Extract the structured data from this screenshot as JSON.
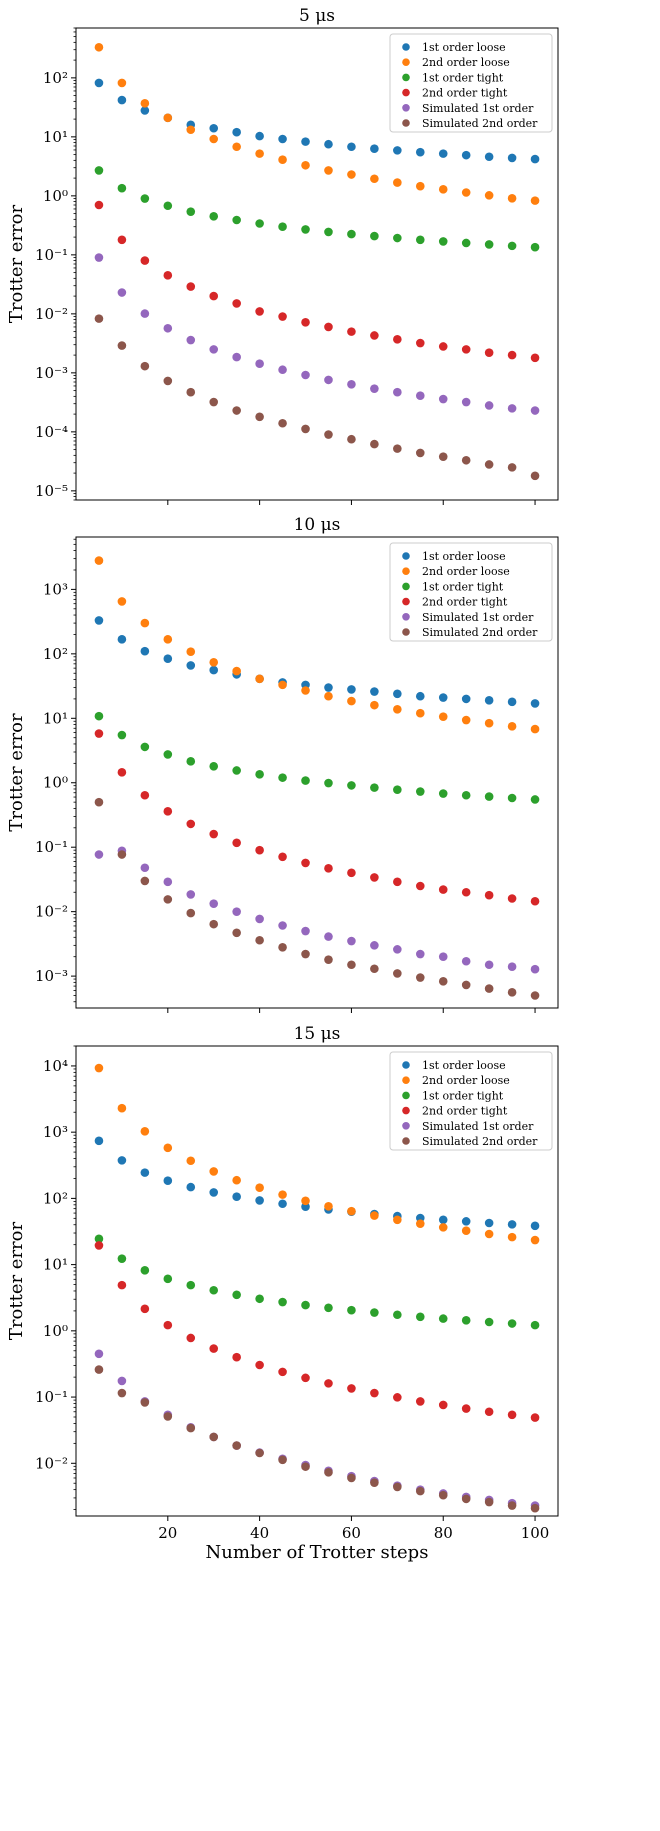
{
  "chart_data": [
    {
      "type": "scatter",
      "title": "5 μs",
      "ylabel": "Trotter error",
      "xlabel": "",
      "yscale": "log",
      "xlim": [
        0,
        105
      ],
      "ylim": [
        7e-06,
        700
      ],
      "yticks": [
        1e-05,
        0.0001,
        0.001,
        0.01,
        0.1,
        1,
        10,
        100
      ],
      "xticks": [
        20,
        40,
        60,
        80,
        100
      ],
      "x": [
        5,
        10,
        15,
        20,
        25,
        30,
        35,
        40,
        45,
        50,
        55,
        60,
        65,
        70,
        75,
        80,
        85,
        90,
        95,
        100
      ],
      "legend_position": "upper right",
      "series": [
        {
          "name": "1st order loose",
          "color": "#1f77b4",
          "values": [
            82,
            42,
            28,
            21,
            16,
            14,
            12,
            10.3,
            9.2,
            8.3,
            7.5,
            6.8,
            6.3,
            5.9,
            5.5,
            5.2,
            4.9,
            4.6,
            4.4,
            4.2
          ]
        },
        {
          "name": "2nd order loose",
          "color": "#ff7f0e",
          "values": [
            330,
            82,
            37,
            21,
            13.2,
            9.2,
            6.8,
            5.2,
            4.1,
            3.3,
            2.7,
            2.3,
            1.95,
            1.68,
            1.46,
            1.29,
            1.14,
            1.02,
            0.91,
            0.83
          ]
        },
        {
          "name": "1st order tight",
          "color": "#2ca02c",
          "values": [
            2.7,
            1.35,
            0.9,
            0.68,
            0.54,
            0.45,
            0.39,
            0.34,
            0.3,
            0.27,
            0.245,
            0.225,
            0.208,
            0.193,
            0.18,
            0.169,
            0.159,
            0.15,
            0.142,
            0.135
          ]
        },
        {
          "name": "2nd order tight",
          "color": "#d62728",
          "values": [
            0.7,
            0.18,
            0.08,
            0.045,
            0.029,
            0.02,
            0.015,
            0.011,
            0.009,
            0.0072,
            0.006,
            0.005,
            0.0043,
            0.0037,
            0.0032,
            0.0028,
            0.0025,
            0.0022,
            0.002,
            0.0018
          ]
        },
        {
          "name": "Simulated 1st order",
          "color": "#9467bd",
          "values": [
            0.09,
            0.023,
            0.0101,
            0.0057,
            0.0036,
            0.0025,
            0.00185,
            0.00143,
            0.00113,
            0.00092,
            0.00076,
            0.00064,
            0.00054,
            0.00047,
            0.00041,
            0.00036,
            0.00032,
            0.00028,
            0.00025,
            0.00023
          ]
        },
        {
          "name": "Simulated 2nd order",
          "color": "#8c564b",
          "values": [
            0.0083,
            0.0029,
            0.0013,
            0.00073,
            0.00047,
            0.00032,
            0.00023,
            0.00018,
            0.00014,
            0.000112,
            9e-05,
            7.5e-05,
            6.2e-05,
            5.2e-05,
            4.4e-05,
            3.8e-05,
            3.3e-05,
            2.8e-05,
            2.5e-05,
            1.8e-05
          ]
        }
      ]
    },
    {
      "type": "scatter",
      "title": "10 μs",
      "ylabel": "Trotter error",
      "xlabel": "",
      "yscale": "log",
      "xlim": [
        0,
        105
      ],
      "ylim": [
        0.00032,
        6500
      ],
      "yticks": [
        0.001,
        0.01,
        0.1,
        1,
        10,
        100,
        1000
      ],
      "xticks": [
        20,
        40,
        60,
        80,
        100
      ],
      "x": [
        5,
        10,
        15,
        20,
        25,
        30,
        35,
        40,
        45,
        50,
        55,
        60,
        65,
        70,
        75,
        80,
        85,
        90,
        95,
        100
      ],
      "legend_position": "upper right",
      "series": [
        {
          "name": "1st order loose",
          "color": "#1f77b4",
          "values": [
            330,
            168,
            110,
            84,
            66,
            56,
            48,
            41,
            36,
            33,
            30,
            28,
            26,
            24,
            22,
            21,
            20,
            19,
            18,
            17
          ]
        },
        {
          "name": "2nd order loose",
          "color": "#ff7f0e",
          "values": [
            2800,
            650,
            300,
            168,
            108,
            74,
            54,
            41,
            33,
            27,
            22,
            18.5,
            16,
            13.8,
            12,
            10.6,
            9.4,
            8.4,
            7.5,
            6.8
          ]
        },
        {
          "name": "1st order tight",
          "color": "#2ca02c",
          "values": [
            10.8,
            5.5,
            3.6,
            2.75,
            2.15,
            1.8,
            1.55,
            1.35,
            1.2,
            1.08,
            0.99,
            0.91,
            0.84,
            0.78,
            0.73,
            0.68,
            0.64,
            0.61,
            0.58,
            0.55
          ]
        },
        {
          "name": "2nd order tight",
          "color": "#d62728",
          "values": [
            5.8,
            1.45,
            0.64,
            0.36,
            0.23,
            0.16,
            0.117,
            0.09,
            0.071,
            0.057,
            0.047,
            0.04,
            0.034,
            0.029,
            0.025,
            0.022,
            0.02,
            0.018,
            0.016,
            0.0145
          ]
        },
        {
          "name": "Simulated 1st order",
          "color": "#9467bd",
          "values": [
            0.077,
            0.088,
            0.048,
            0.029,
            0.0185,
            0.0133,
            0.01,
            0.0077,
            0.0061,
            0.005,
            0.0041,
            0.0035,
            0.003,
            0.0026,
            0.0022,
            0.002,
            0.0017,
            0.0015,
            0.0014,
            0.00128
          ]
        },
        {
          "name": "Simulated 2nd order",
          "color": "#8c564b",
          "values": [
            0.5,
            0.077,
            0.03,
            0.0155,
            0.0095,
            0.0064,
            0.0047,
            0.0036,
            0.0028,
            0.0022,
            0.0018,
            0.0015,
            0.0013,
            0.0011,
            0.00095,
            0.00083,
            0.00073,
            0.00064,
            0.00056,
            0.0005
          ]
        }
      ]
    },
    {
      "type": "scatter",
      "title": "15 μs",
      "ylabel": "Trotter error",
      "xlabel": "Number of Trotter steps",
      "yscale": "log",
      "xlim": [
        0,
        105
      ],
      "ylim": [
        0.0016,
        20000
      ],
      "yticks": [
        0.01,
        0.1,
        1,
        10,
        100,
        1000,
        10000
      ],
      "xticks": [
        20,
        40,
        60,
        80,
        100
      ],
      "x": [
        5,
        10,
        15,
        20,
        25,
        30,
        35,
        40,
        45,
        50,
        55,
        60,
        65,
        70,
        75,
        80,
        85,
        90,
        95,
        100
      ],
      "legend_position": "upper right",
      "series": [
        {
          "name": "1st order loose",
          "color": "#1f77b4",
          "values": [
            740,
            375,
            245,
            185,
            148,
            123,
            106,
            93,
            83,
            75,
            68,
            63,
            58,
            54,
            50.5,
            47.5,
            45,
            42.5,
            40.5,
            38.5
          ]
        },
        {
          "name": "2nd order loose",
          "color": "#ff7f0e",
          "values": [
            9300,
            2300,
            1030,
            580,
            370,
            255,
            188,
            145,
            114,
            92,
            76,
            64,
            55,
            47.5,
            41.5,
            36.5,
            32.5,
            29,
            26,
            23.5
          ]
        },
        {
          "name": "1st order tight",
          "color": "#2ca02c",
          "values": [
            24.5,
            12.3,
            8.2,
            6.1,
            4.9,
            4.1,
            3.5,
            3.05,
            2.72,
            2.45,
            2.23,
            2.05,
            1.89,
            1.75,
            1.63,
            1.53,
            1.44,
            1.36,
            1.29,
            1.22
          ]
        },
        {
          "name": "2nd order tight",
          "color": "#d62728",
          "values": [
            19.5,
            4.9,
            2.15,
            1.22,
            0.78,
            0.54,
            0.4,
            0.305,
            0.24,
            0.195,
            0.161,
            0.135,
            0.115,
            0.099,
            0.086,
            0.076,
            0.067,
            0.06,
            0.054,
            0.049
          ]
        },
        {
          "name": "Simulated 1st order",
          "color": "#9467bd",
          "values": [
            0.45,
            0.175,
            0.086,
            0.054,
            0.035,
            0.025,
            0.0185,
            0.0145,
            0.0117,
            0.0094,
            0.0077,
            0.0064,
            0.0054,
            0.0046,
            0.004,
            0.0035,
            0.0031,
            0.0028,
            0.0025,
            0.0023
          ]
        },
        {
          "name": "Simulated 2nd order",
          "color": "#8c564b",
          "values": [
            0.26,
            0.115,
            0.083,
            0.051,
            0.034,
            0.025,
            0.0185,
            0.0143,
            0.0113,
            0.0089,
            0.0073,
            0.006,
            0.0051,
            0.0044,
            0.0038,
            0.0033,
            0.0029,
            0.0026,
            0.0023,
            0.0021
          ]
        }
      ]
    }
  ]
}
